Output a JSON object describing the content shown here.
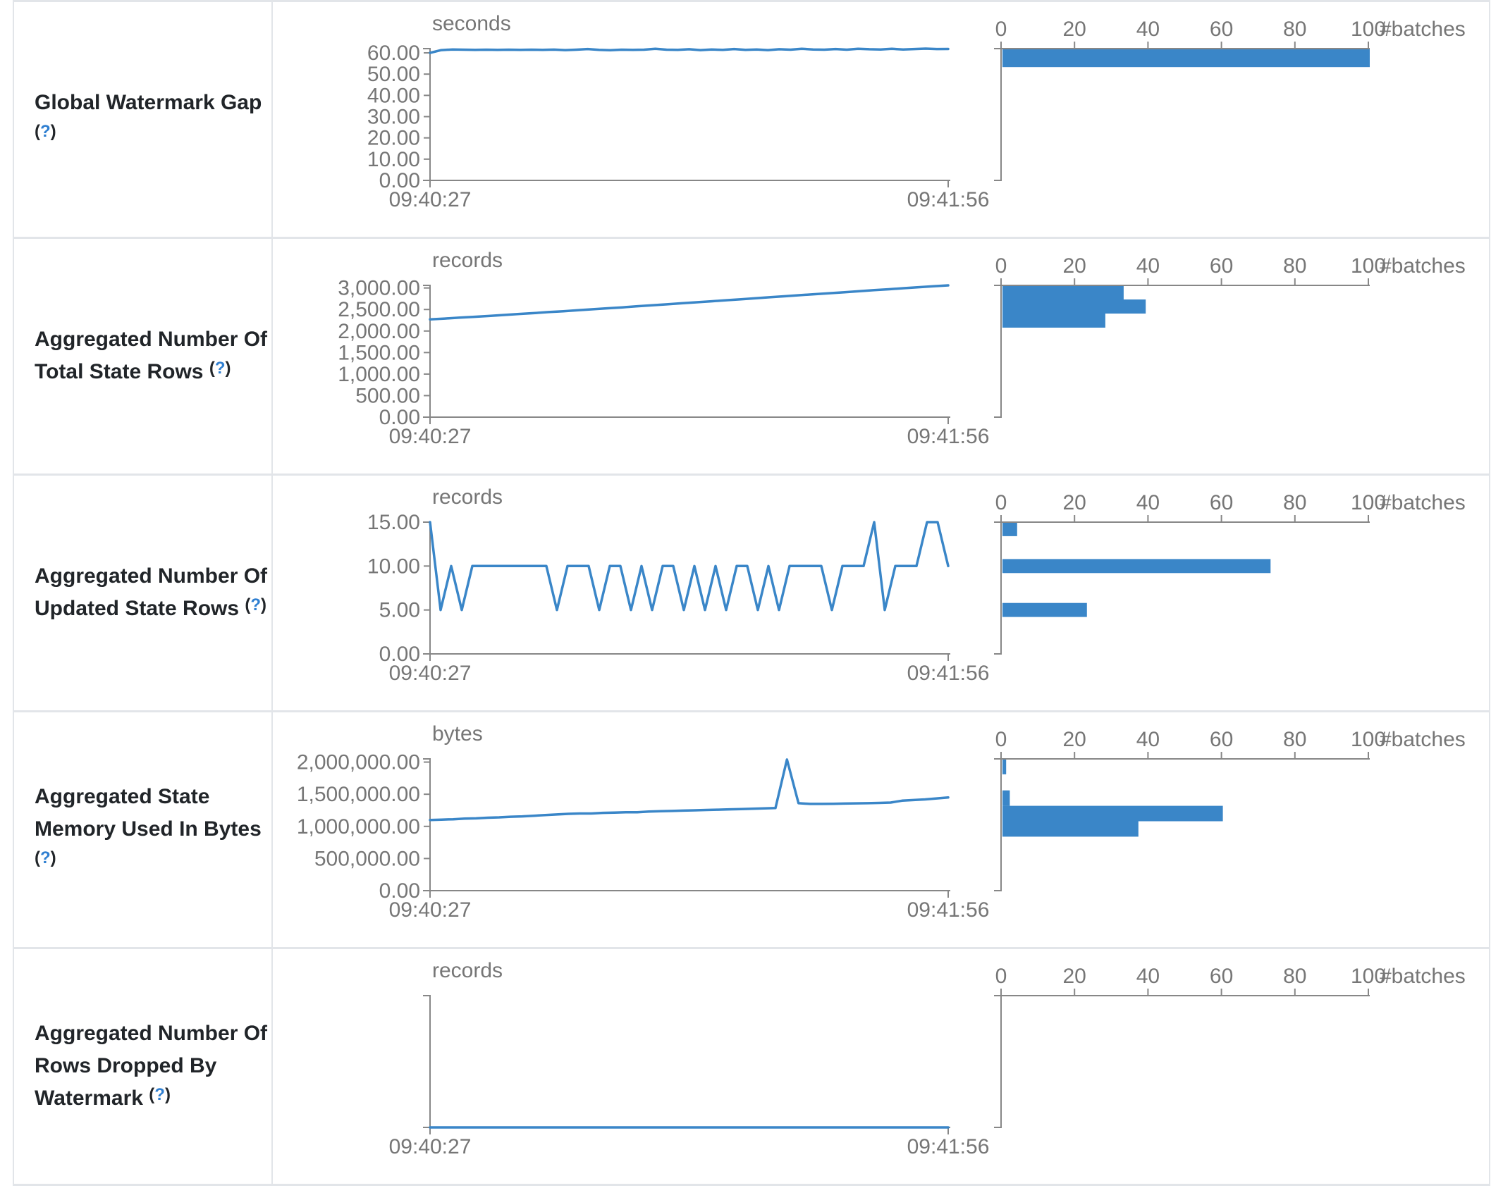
{
  "colors": {
    "series_blue": "#3a86c8",
    "help_blue": "#2f7fd1",
    "axis_gray": "#878787",
    "tick_text_gray": "#767676",
    "label_text": "#212529",
    "border_gray": "#e2e5e9"
  },
  "chart_data": [
    {
      "metric": "Global Watermark Gap",
      "label_lines": [
        "Global Watermark Gap",
        "(?)"
      ],
      "type": "line",
      "unit": "seconds",
      "x_start_label": "09:40:27",
      "x_end_label": "09:41:56",
      "ylim": [
        0,
        62
      ],
      "yticks": [
        {
          "v": 0,
          "t": "0.00"
        },
        {
          "v": 10,
          "t": "10.00"
        },
        {
          "v": 20,
          "t": "20.00"
        },
        {
          "v": 30,
          "t": "30.00"
        },
        {
          "v": 40,
          "t": "40.00"
        },
        {
          "v": 50,
          "t": "50.00"
        },
        {
          "v": 60,
          "t": "60.00"
        }
      ],
      "values": [
        60.0,
        61.3,
        61.6,
        61.5,
        61.4,
        61.5,
        61.45,
        61.5,
        61.4,
        61.5,
        61.45,
        61.55,
        61.3,
        61.5,
        61.8,
        61.4,
        61.25,
        61.5,
        61.4,
        61.5,
        61.9,
        61.5,
        61.4,
        61.7,
        61.3,
        61.6,
        61.4,
        61.8,
        61.45,
        61.6,
        61.3,
        61.7,
        61.5,
        61.9,
        61.6,
        61.5,
        61.8,
        61.5,
        61.95,
        61.7,
        61.6,
        61.9,
        61.6,
        61.8,
        62.0,
        61.8,
        61.85
      ],
      "histogram": {
        "axis_label": "#batches",
        "xlim": [
          0,
          100
        ],
        "xticks": [
          {
            "v": 0,
            "t": "0"
          },
          {
            "v": 20,
            "t": "20"
          },
          {
            "v": 40,
            "t": "40"
          },
          {
            "v": 60,
            "t": "60"
          },
          {
            "v": 80,
            "t": "80"
          },
          {
            "v": 100,
            "t": "100"
          }
        ],
        "bins": [
          {
            "top": 62,
            "bottom": 53.3,
            "count": 100
          }
        ]
      }
    },
    {
      "metric": "Aggregated Number Of Total State Rows",
      "label_lines": [
        "Aggregated Number Of",
        "Total State Rows (?)"
      ],
      "type": "line",
      "unit": "records",
      "x_start_label": "09:40:27",
      "x_end_label": "09:41:56",
      "ylim": [
        0,
        3060
      ],
      "yticks": [
        {
          "v": 0,
          "t": "0.00"
        },
        {
          "v": 500,
          "t": "500.00"
        },
        {
          "v": 1000,
          "t": "1,000.00"
        },
        {
          "v": 1500,
          "t": "1,500.00"
        },
        {
          "v": 2000,
          "t": "2,000.00"
        },
        {
          "v": 2500,
          "t": "2,500.00"
        },
        {
          "v": 3000,
          "t": "3,000.00"
        }
      ],
      "values": [
        2270,
        2290,
        2310,
        2330,
        2350,
        2372,
        2395,
        2415,
        2440,
        2460,
        2482,
        2505,
        2528,
        2550,
        2575,
        2598,
        2620,
        2645,
        2668,
        2690,
        2715,
        2738,
        2762,
        2785,
        2808,
        2832,
        2855,
        2878,
        2900,
        2925,
        2948,
        2970,
        2995,
        3018,
        3040,
        3060
      ],
      "histogram": {
        "axis_label": "#batches",
        "xlim": [
          0,
          100
        ],
        "xticks": [
          {
            "v": 0,
            "t": "0"
          },
          {
            "v": 20,
            "t": "20"
          },
          {
            "v": 40,
            "t": "40"
          },
          {
            "v": 60,
            "t": "60"
          },
          {
            "v": 80,
            "t": "80"
          },
          {
            "v": 100,
            "t": "100"
          }
        ],
        "bins": [
          {
            "top": 3060,
            "bottom": 2733,
            "count": 33
          },
          {
            "top": 2733,
            "bottom": 2406,
            "count": 39
          },
          {
            "top": 2406,
            "bottom": 2079,
            "count": 28
          }
        ]
      }
    },
    {
      "metric": "Aggregated Number Of Updated State Rows",
      "label_lines": [
        "Aggregated Number Of",
        "Updated State Rows (?)"
      ],
      "type": "line",
      "unit": "records",
      "x_start_label": "09:40:27",
      "x_end_label": "09:41:56",
      "ylim": [
        0,
        15
      ],
      "yticks": [
        {
          "v": 0,
          "t": "0.00"
        },
        {
          "v": 5,
          "t": "5.00"
        },
        {
          "v": 10,
          "t": "10.00"
        },
        {
          "v": 15,
          "t": "15.00"
        }
      ],
      "values": [
        15,
        5,
        10,
        5,
        10,
        10,
        10,
        10,
        10,
        10,
        10,
        10,
        5,
        10,
        10,
        10,
        5,
        10,
        10,
        5,
        10,
        5,
        10,
        10,
        5,
        10,
        5,
        10,
        5,
        10,
        10,
        5,
        10,
        5,
        10,
        10,
        10,
        10,
        5,
        10,
        10,
        10,
        15,
        5,
        10,
        10,
        10,
        15,
        15,
        10
      ],
      "histogram": {
        "axis_label": "#batches",
        "xlim": [
          0,
          100
        ],
        "xticks": [
          {
            "v": 0,
            "t": "0"
          },
          {
            "v": 20,
            "t": "20"
          },
          {
            "v": 40,
            "t": "40"
          },
          {
            "v": 60,
            "t": "60"
          },
          {
            "v": 80,
            "t": "80"
          },
          {
            "v": 100,
            "t": "100"
          }
        ],
        "bins": [
          {
            "top": 15,
            "bottom": 13.4,
            "count": 4
          },
          {
            "top": 10.8,
            "bottom": 9.2,
            "count": 73
          },
          {
            "top": 5.8,
            "bottom": 4.2,
            "count": 23
          }
        ]
      }
    },
    {
      "metric": "Aggregated State Memory Used In Bytes",
      "label_lines": [
        "Aggregated State",
        "Memory Used In Bytes",
        "(?)"
      ],
      "type": "line",
      "unit": "bytes",
      "x_start_label": "09:40:27",
      "x_end_label": "09:41:56",
      "ylim": [
        0,
        2050000
      ],
      "yticks": [
        {
          "v": 0,
          "t": "0.00"
        },
        {
          "v": 500000,
          "t": "500,000.00"
        },
        {
          "v": 1000000,
          "t": "1,000,000.00"
        },
        {
          "v": 1500000,
          "t": "1,500,000.00"
        },
        {
          "v": 2000000,
          "t": "2,000,000.00"
        }
      ],
      "values": [
        1100000,
        1105000,
        1110000,
        1120000,
        1125000,
        1135000,
        1140000,
        1150000,
        1155000,
        1165000,
        1175000,
        1185000,
        1195000,
        1200000,
        1200000,
        1210000,
        1215000,
        1220000,
        1220000,
        1230000,
        1235000,
        1240000,
        1245000,
        1250000,
        1255000,
        1260000,
        1265000,
        1270000,
        1275000,
        1280000,
        1285000,
        2040000,
        1360000,
        1350000,
        1350000,
        1352000,
        1355000,
        1358000,
        1360000,
        1365000,
        1370000,
        1400000,
        1410000,
        1420000,
        1435000,
        1450000
      ],
      "histogram": {
        "axis_label": "#batches",
        "xlim": [
          0,
          100
        ],
        "xticks": [
          {
            "v": 0,
            "t": "0"
          },
          {
            "v": 20,
            "t": "20"
          },
          {
            "v": 40,
            "t": "40"
          },
          {
            "v": 60,
            "t": "60"
          },
          {
            "v": 80,
            "t": "80"
          },
          {
            "v": 100,
            "t": "100"
          }
        ],
        "bins": [
          {
            "top": 2050000,
            "bottom": 1810000,
            "count": 1
          },
          {
            "top": 1560000,
            "bottom": 1320000,
            "count": 2
          },
          {
            "top": 1320000,
            "bottom": 1080000,
            "count": 60
          },
          {
            "top": 1080000,
            "bottom": 840000,
            "count": 37
          }
        ]
      }
    },
    {
      "metric": "Aggregated Number Of Rows Dropped By Watermark",
      "label_lines": [
        "Aggregated Number Of",
        "Rows Dropped By",
        "Watermark (?)"
      ],
      "type": "line",
      "unit": "records",
      "x_start_label": "09:40:27",
      "x_end_label": "09:41:56",
      "ylim": [
        0,
        1
      ],
      "yticks": [],
      "values": [
        0,
        0,
        0,
        0,
        0,
        0,
        0,
        0,
        0,
        0
      ],
      "histogram": {
        "axis_label": "#batches",
        "xlim": [
          0,
          100
        ],
        "xticks": [
          {
            "v": 0,
            "t": "0"
          },
          {
            "v": 20,
            "t": "20"
          },
          {
            "v": 40,
            "t": "40"
          },
          {
            "v": 60,
            "t": "60"
          },
          {
            "v": 80,
            "t": "80"
          },
          {
            "v": 100,
            "t": "100"
          }
        ],
        "bins": []
      }
    }
  ]
}
